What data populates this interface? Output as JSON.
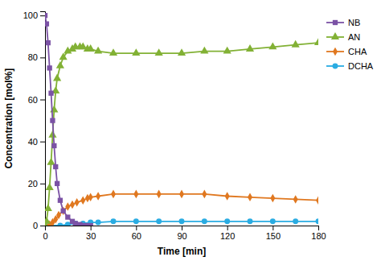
{
  "chart_data": {
    "type": "line",
    "xlabel": "Time [min]",
    "ylabel": "Concentration [mol%]",
    "xlim": [
      0,
      180
    ],
    "ylim": [
      0,
      102
    ],
    "xticks": [
      0,
      30,
      60,
      90,
      120,
      150,
      180
    ],
    "yticks": [
      0,
      20,
      40,
      60,
      80,
      100
    ],
    "grid": false,
    "legend": "upper right",
    "series": [
      {
        "name": "NB",
        "color": "#7B52A5",
        "marker": "square",
        "x": [
          0,
          1,
          2,
          3,
          4,
          5,
          6,
          7,
          8,
          10,
          12,
          15,
          18,
          20,
          23,
          25,
          27,
          30
        ],
        "values": [
          100,
          96,
          87,
          75,
          63,
          50,
          38,
          28,
          20,
          12,
          7,
          4,
          2,
          1,
          0.5,
          0,
          0,
          0
        ]
      },
      {
        "name": "AN",
        "color": "#82B135",
        "marker": "triangle",
        "x": [
          0,
          1,
          2,
          3,
          4,
          5,
          6,
          7,
          8,
          10,
          12,
          15,
          18,
          20,
          23,
          25,
          28,
          30,
          35,
          45,
          60,
          75,
          90,
          105,
          120,
          135,
          150,
          165,
          180
        ],
        "values": [
          0,
          2,
          8,
          18,
          30,
          43,
          55,
          64,
          70,
          76,
          80,
          83,
          84,
          85,
          85,
          85,
          84,
          84,
          83,
          82,
          82,
          82,
          82,
          83,
          83,
          84,
          85,
          86,
          87
        ]
      },
      {
        "name": "CHA",
        "color": "#E07820",
        "marker": "diamond",
        "x": [
          0,
          3,
          5,
          7,
          9,
          12,
          15,
          18,
          21,
          25,
          28,
          30,
          35,
          45,
          60,
          75,
          90,
          105,
          120,
          135,
          150,
          165,
          180
        ],
        "values": [
          0,
          0.5,
          1.5,
          3,
          5,
          7,
          9,
          10,
          11,
          12,
          13,
          13.5,
          14,
          15,
          15,
          15,
          15,
          15,
          14,
          13.5,
          13,
          12.5,
          12
        ]
      },
      {
        "name": "DCHA",
        "color": "#2AACE2",
        "marker": "circle",
        "x": [
          0,
          10,
          15,
          20,
          25,
          30,
          35,
          45,
          60,
          75,
          90,
          105,
          120,
          135,
          150,
          165,
          180
        ],
        "values": [
          0,
          0,
          0.5,
          1,
          1,
          1.5,
          1.5,
          2,
          2,
          2,
          2,
          2,
          2,
          2,
          2,
          2,
          2
        ]
      }
    ]
  }
}
